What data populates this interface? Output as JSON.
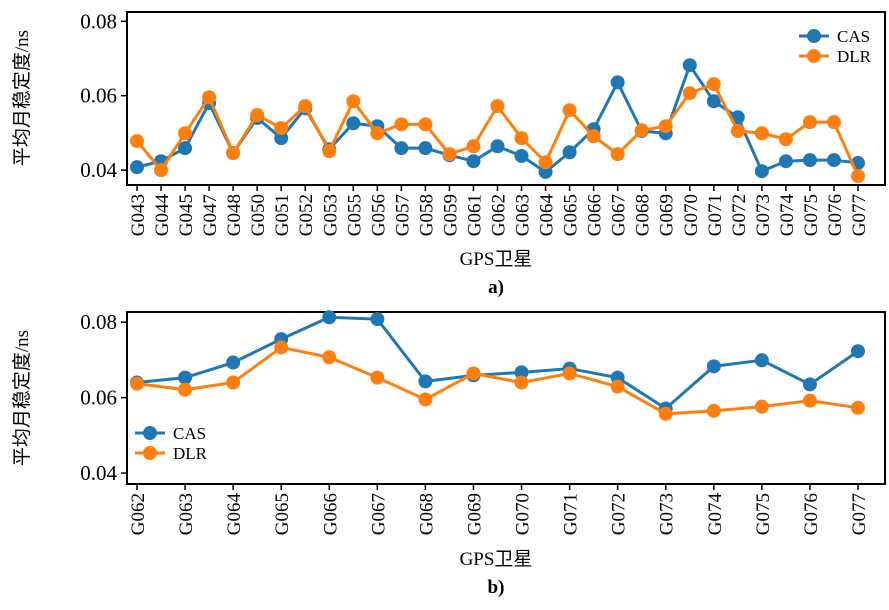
{
  "chart_data": [
    {
      "type": "line",
      "caption": "a)",
      "ylabel": "平均月稳定度/ns",
      "xlabel": "GPS卫星",
      "categories": [
        "G043",
        "G044",
        "G045",
        "G047",
        "G048",
        "G050",
        "G051",
        "G052",
        "G053",
        "G055",
        "G056",
        "G057",
        "G058",
        "G059",
        "G061",
        "G062",
        "G063",
        "G064",
        "G065",
        "G066",
        "G067",
        "G068",
        "G069",
        "G070",
        "G071",
        "G072",
        "G073",
        "G074",
        "G075",
        "G076",
        "G077"
      ],
      "series": [
        {
          "name": "CAS",
          "color": "#1f77b4",
          "values": [
            0.0408,
            0.0424,
            0.0459,
            0.058,
            0.0446,
            0.054,
            0.0486,
            0.0566,
            0.0456,
            0.0526,
            0.0518,
            0.0459,
            0.0459,
            0.044,
            0.0424,
            0.0464,
            0.0438,
            0.0395,
            0.0448,
            0.051,
            0.0636,
            0.0505,
            0.0499,
            0.0682,
            0.0585,
            0.0542,
            0.0397,
            0.0424,
            0.0427,
            0.0427,
            0.0419
          ]
        },
        {
          "name": "DLR",
          "color": "#ff7f0e",
          "values": [
            0.0478,
            0.04,
            0.0499,
            0.0596,
            0.0446,
            0.0548,
            0.0513,
            0.0572,
            0.0451,
            0.0585,
            0.0499,
            0.0523,
            0.0523,
            0.0443,
            0.0464,
            0.0572,
            0.0486,
            0.0421,
            0.0561,
            0.0491,
            0.0443,
            0.0507,
            0.0518,
            0.0607,
            0.0631,
            0.0505,
            0.0499,
            0.0483,
            0.0529,
            0.0529,
            0.0384
          ]
        }
      ],
      "ylim": [
        0.036,
        0.0825
      ],
      "yticks": [
        0.04,
        0.06,
        0.08
      ],
      "legend": "upper right"
    },
    {
      "type": "line",
      "caption": "b)",
      "ylabel": "平均月稳定度/ns",
      "xlabel": "GPS卫星",
      "categories": [
        "G062",
        "G063",
        "G064",
        "G065",
        "G066",
        "G067",
        "G068",
        "G069",
        "G070",
        "G071",
        "G072",
        "G073",
        "G074",
        "G075",
        "G076",
        "G077"
      ],
      "series": [
        {
          "name": "CAS",
          "color": "#1f77b4",
          "values": [
            0.064,
            0.0653,
            0.0693,
            0.0755,
            0.0813,
            0.0808,
            0.0643,
            0.0659,
            0.0667,
            0.0677,
            0.0653,
            0.0571,
            0.0683,
            0.0699,
            0.0635,
            0.0723
          ]
        },
        {
          "name": "DLR",
          "color": "#ff7f0e",
          "values": [
            0.0637,
            0.0621,
            0.064,
            0.0733,
            0.0707,
            0.0653,
            0.0595,
            0.0664,
            0.064,
            0.0664,
            0.0629,
            0.0557,
            0.0565,
            0.0576,
            0.0592,
            0.0573
          ]
        }
      ],
      "ylim": [
        0.0371,
        0.0827
      ],
      "yticks": [
        0.04,
        0.06,
        0.08
      ],
      "legend": "center left"
    }
  ]
}
